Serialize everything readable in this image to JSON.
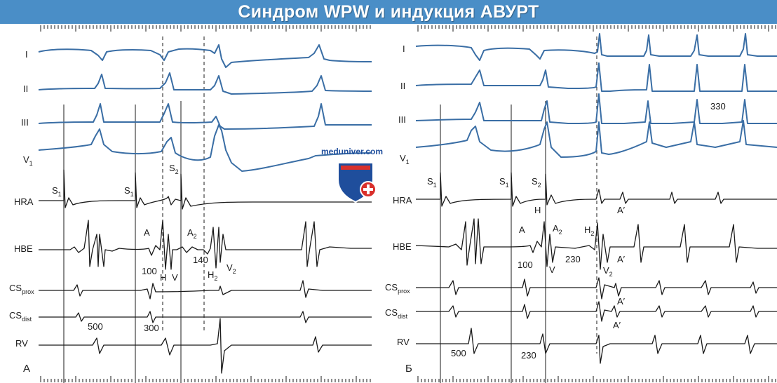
{
  "title": "Синдром WPW и индукция АВУРТ",
  "watermark": "meduniver.com",
  "colors": {
    "banner": "#4a8ec7",
    "ecg": "#3a6ea5",
    "egm": "#1a1a1a",
    "logo_blue": "#1f4e9c",
    "logo_red": "#d9302c"
  },
  "lead_labels": {
    "I": "I",
    "II": "II",
    "III": "III",
    "V1": "V",
    "V1_sub": "1",
    "HRA": "HRA",
    "HBE": "HBE",
    "CSprox": "CS",
    "CSprox_sub": "prox",
    "CSdist": "CS",
    "CSdist_sub": "dist",
    "RV": "RV"
  },
  "panel_a": {
    "label": "А",
    "s1_a": "S",
    "s1_a_sub": "1",
    "s1_b": "S",
    "s1_b_sub": "1",
    "s2": "S",
    "s2_sub": "2",
    "a": "A",
    "a2": "A",
    "a2_sub": "2",
    "h": "H",
    "v": "V",
    "h2": "H",
    "h2_sub": "2",
    "v2": "V",
    "v2_sub": "2",
    "n100": "100",
    "n140": "140",
    "n500": "500",
    "n300": "300"
  },
  "panel_b": {
    "label": "Б",
    "s1_a": "S",
    "s1_a_sub": "1",
    "s1_b": "S",
    "s1_b_sub": "1",
    "s2": "S",
    "s2_sub": "2",
    "a": "A",
    "h": "H",
    "a2": "A",
    "a2_sub": "2",
    "h2": "H",
    "h2_sub": "2",
    "v": "V",
    "v2": "V",
    "v2_sub": "2",
    "n100": "100",
    "n230_hbe": "230",
    "n330": "330",
    "aprime_hra": "A′",
    "aprime_hbe": "A′",
    "aprime_csp": "A′",
    "aprime_csd": "A′",
    "n500": "500",
    "n230_rv": "230"
  }
}
